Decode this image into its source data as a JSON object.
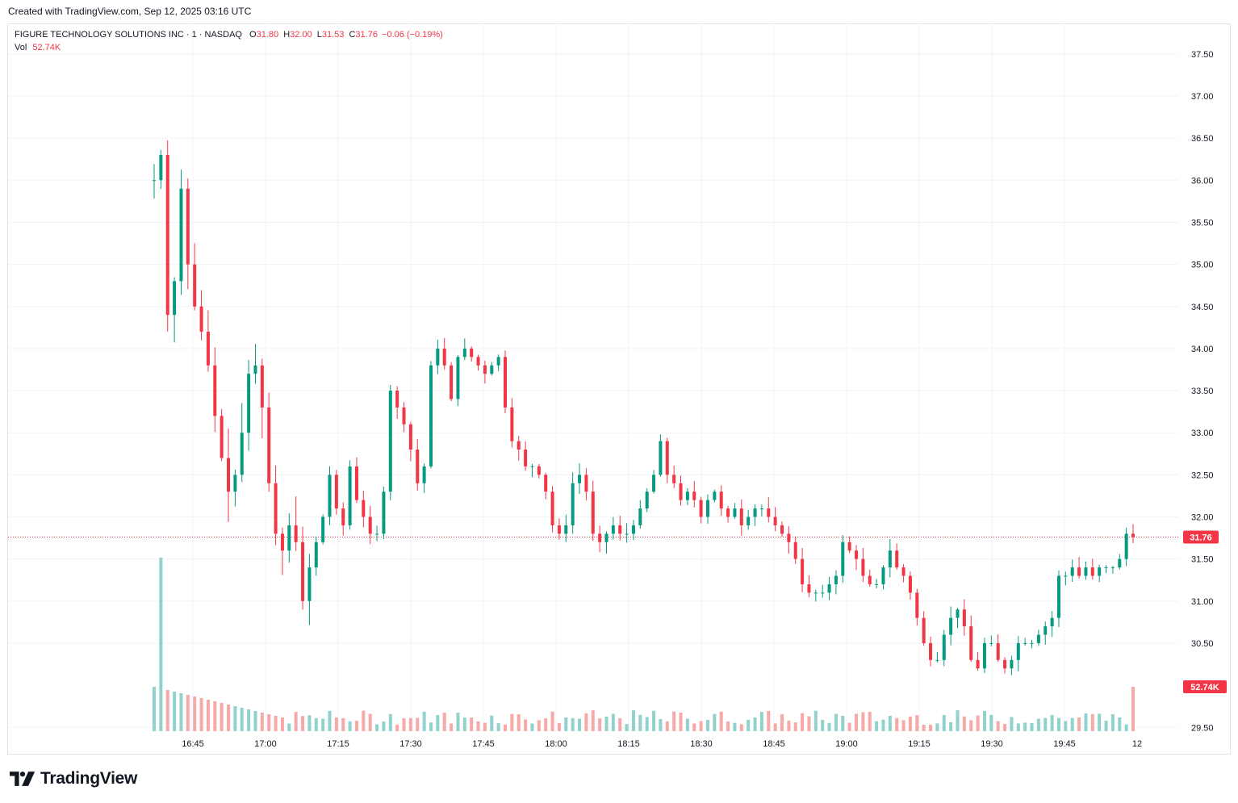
{
  "credit": "Created with TradingView.com, Sep 12, 2025 03:16 UTC",
  "legend": {
    "symbol": "FIGURE TECHNOLOGY SOLUTIONS INC · 1 · NASDAQ",
    "o_label": "O",
    "o_value": "31.80",
    "h_label": "H",
    "h_value": "32.00",
    "l_label": "L",
    "l_value": "31.53",
    "c_label": "C",
    "c_value": "31.76",
    "change": "−0.06 (−0.19%)",
    "vol_label": "Vol",
    "vol_value": "52.74K"
  },
  "brand": "TradingView",
  "chart_data": {
    "type": "candlestick",
    "y_ticks": [
      "37.50",
      "37.00",
      "36.50",
      "36.00",
      "35.50",
      "35.00",
      "34.50",
      "34.00",
      "33.50",
      "33.00",
      "32.50",
      "32.00",
      "31.50",
      "31.00",
      "30.50",
      "29.50"
    ],
    "ylim": [
      29.45,
      37.75
    ],
    "x_ticks": [
      "16:45",
      "17:00",
      "17:15",
      "17:30",
      "17:45",
      "18:00",
      "18:15",
      "18:30",
      "18:45",
      "19:00",
      "19:15",
      "19:30",
      "19:45",
      "12"
    ],
    "last_price_label": "31.76",
    "last_volume_label": "52.74K",
    "colors": {
      "up": "#089981",
      "down": "#f23645",
      "up_volume": "#92d2cc",
      "down_volume": "#f7a9a7",
      "grid": "#f0f3fa"
    },
    "closes": [
      36.0,
      36.3,
      34.4,
      34.8,
      35.9,
      35.0,
      34.5,
      34.2,
      33.8,
      33.2,
      32.7,
      32.3,
      32.5,
      33.0,
      33.7,
      33.8,
      33.3,
      32.4,
      31.8,
      31.6,
      31.9,
      31.7,
      31.0,
      31.4,
      31.7,
      32.0,
      32.5,
      32.1,
      31.9,
      32.6,
      32.2,
      32.0,
      31.8,
      31.8,
      32.3,
      33.5,
      33.3,
      33.1,
      32.8,
      32.4,
      32.6,
      33.8,
      34.0,
      33.8,
      33.4,
      33.9,
      34.0,
      33.9,
      33.8,
      33.7,
      33.8,
      33.9,
      33.3,
      32.9,
      32.8,
      32.6,
      32.6,
      32.5,
      32.3,
      31.9,
      31.8,
      31.9,
      32.4,
      32.5,
      32.3,
      31.8,
      31.7,
      31.8,
      31.9,
      31.8,
      31.8,
      31.9,
      32.1,
      32.3,
      32.5,
      32.9,
      32.5,
      32.4,
      32.2,
      32.3,
      32.2,
      32.0,
      32.2,
      32.3,
      32.1,
      32.0,
      32.1,
      31.9,
      32.0,
      32.1,
      32.1,
      32.0,
      31.9,
      31.8,
      31.7,
      31.5,
      31.2,
      31.1,
      31.1,
      31.1,
      31.2,
      31.3,
      31.7,
      31.6,
      31.5,
      31.3,
      31.2,
      31.2,
      31.4,
      31.6,
      31.4,
      31.3,
      31.1,
      30.8,
      30.5,
      30.3,
      30.3,
      30.6,
      30.8,
      30.9,
      30.7,
      30.3,
      30.2,
      30.5,
      30.5,
      30.3,
      30.2,
      30.3,
      30.5,
      30.5,
      30.5,
      30.6,
      30.7,
      30.8,
      31.3,
      31.3,
      31.4,
      31.3,
      31.4,
      31.3,
      31.4,
      31.4,
      31.4,
      31.5,
      31.8,
      31.8
    ]
  }
}
